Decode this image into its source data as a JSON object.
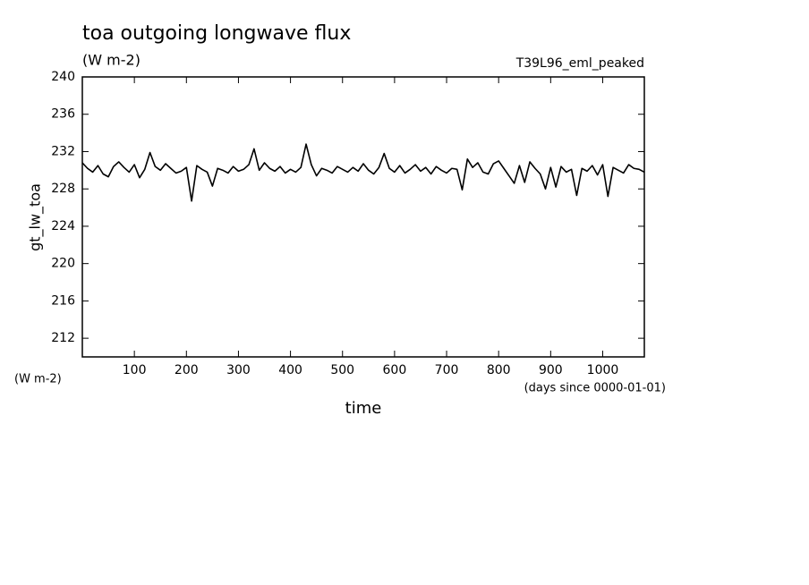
{
  "chart_data": {
    "type": "line",
    "title": "toa outgoing longwave flux",
    "subtitle": "(W m-2)",
    "annotation": "T39L96_eml_peaked",
    "y_label": "gt_lw_toa",
    "y_unit": "(W m-2)",
    "x_label": "time",
    "x_unit": "(days since 0000-01-01)",
    "x": [
      0,
      10,
      20,
      30,
      40,
      50,
      60,
      70,
      80,
      90,
      100,
      110,
      120,
      130,
      140,
      150,
      160,
      170,
      180,
      190,
      200,
      210,
      220,
      230,
      240,
      250,
      260,
      270,
      280,
      290,
      300,
      310,
      320,
      330,
      340,
      350,
      360,
      370,
      380,
      390,
      400,
      410,
      420,
      430,
      440,
      450,
      460,
      470,
      480,
      490,
      500,
      510,
      520,
      530,
      540,
      550,
      560,
      570,
      580,
      590,
      600,
      610,
      620,
      630,
      640,
      650,
      660,
      670,
      680,
      690,
      700,
      710,
      720,
      730,
      740,
      750,
      760,
      770,
      780,
      790,
      800,
      810,
      820,
      830,
      840,
      850,
      860,
      870,
      880,
      890,
      900,
      910,
      920,
      930,
      940,
      950,
      960,
      970,
      980,
      990,
      1000,
      1010,
      1020,
      1030,
      1040,
      1050,
      1060,
      1070,
      1080
    ],
    "series": [
      {
        "name": "gt_lw_toa",
        "color": "#000000",
        "values": [
          230.8,
          230.2,
          229.8,
          230.5,
          229.6,
          229.3,
          230.4,
          230.9,
          230.3,
          229.8,
          230.6,
          229.2,
          230.1,
          231.9,
          230.4,
          230.0,
          230.7,
          230.2,
          229.7,
          229.9,
          230.3,
          226.7,
          230.5,
          230.1,
          229.8,
          228.3,
          230.2,
          230.0,
          229.7,
          230.4,
          229.9,
          230.1,
          230.6,
          232.3,
          230.0,
          230.8,
          230.2,
          229.9,
          230.4,
          229.7,
          230.1,
          229.8,
          230.3,
          232.8,
          230.6,
          229.4,
          230.2,
          230.0,
          229.7,
          230.4,
          230.1,
          229.8,
          230.3,
          229.9,
          230.7,
          230.0,
          229.6,
          230.3,
          231.8,
          230.2,
          229.8,
          230.5,
          229.7,
          230.1,
          230.6,
          229.9,
          230.3,
          229.6,
          230.4,
          230.0,
          229.7,
          230.2,
          230.1,
          227.9,
          231.2,
          230.3,
          230.8,
          229.8,
          229.6,
          230.7,
          231.0,
          230.2,
          229.4,
          228.6,
          230.5,
          228.7,
          230.9,
          230.2,
          229.6,
          228.0,
          230.3,
          228.2,
          230.4,
          229.8,
          230.1,
          227.3,
          230.2,
          229.9,
          230.5,
          229.5,
          230.6,
          227.2,
          230.3,
          230.0,
          229.7,
          230.6,
          230.2,
          230.1,
          229.8
        ]
      }
    ],
    "xlim": [
      0,
      1080
    ],
    "ylim": [
      210,
      240
    ],
    "xticks": [
      100,
      200,
      300,
      400,
      500,
      600,
      700,
      800,
      900,
      1000
    ],
    "yticks": [
      212,
      216,
      220,
      224,
      228,
      232,
      236,
      240
    ],
    "grid": false
  }
}
